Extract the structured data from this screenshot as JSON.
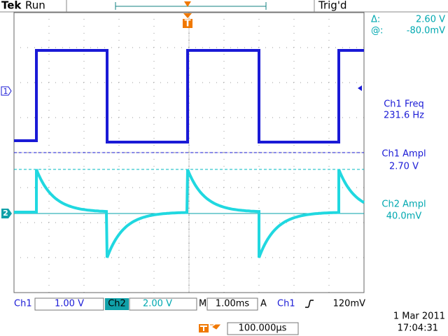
{
  "header": {
    "brand": "Tek",
    "status": "Run",
    "trigger_status": "Trig'd"
  },
  "cursor": {
    "delta_label": "Δ:",
    "delta": "2.60 V",
    "position_label": "@:",
    "position": "-80.0mV"
  },
  "markers": {
    "ch1": "1",
    "ch2": "2",
    "trigger": "T"
  },
  "measurements": [
    {
      "label": "Ch1 Freq",
      "value": "231.6 Hz"
    },
    {
      "label": "Ch1 Ampl",
      "value": "2.70 V"
    },
    {
      "label": "Ch2 Ampl",
      "value": "40.0mV"
    }
  ],
  "footer": {
    "ch1": {
      "label": "Ch1",
      "scale": "1.00 V"
    },
    "ch2": {
      "label": "Ch2",
      "scale": "2.00 V"
    },
    "timebase": {
      "label": "M",
      "scale": "1.00ms"
    },
    "trigger": {
      "label": "A",
      "source": "Ch1",
      "level": "120mV"
    },
    "position": "100.000µs",
    "date": "1 Mar 2011",
    "time": "17:04:31"
  }
}
